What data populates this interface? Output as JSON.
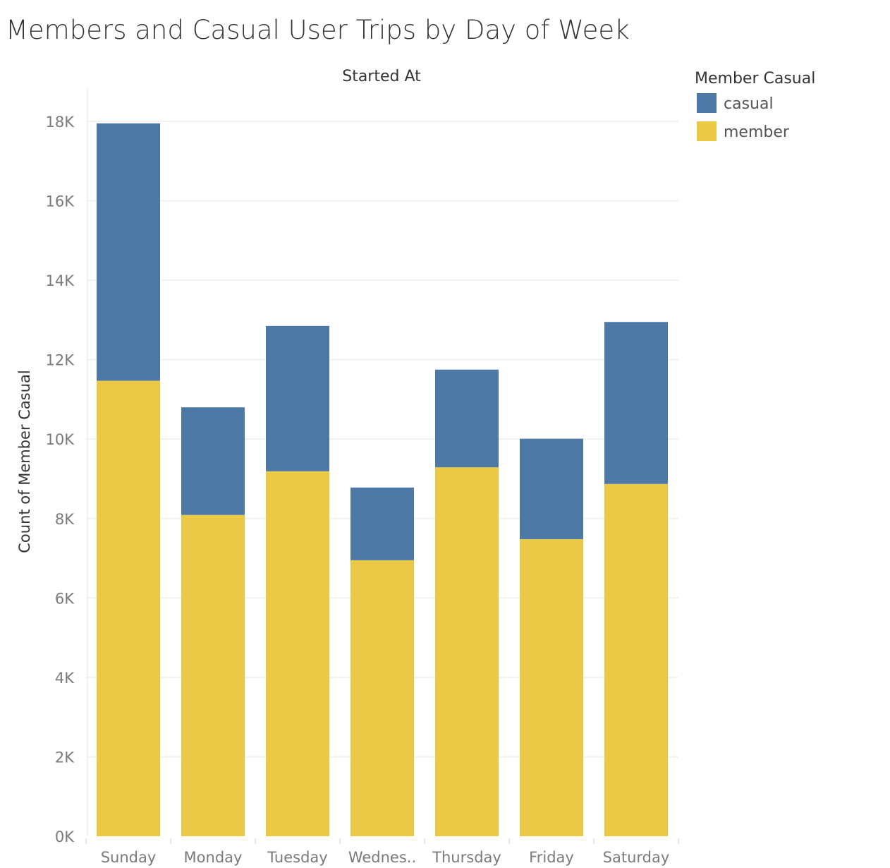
{
  "chart_data": {
    "type": "bar",
    "stacked": true,
    "title": "Members and Casual User Trips by Day of Week",
    "header": "Started At",
    "ylabel": "Count of Member Casual",
    "ylim": [
      0,
      18000
    ],
    "y_ticks": [
      {
        "value": 0,
        "label": "0K"
      },
      {
        "value": 2000,
        "label": "2K"
      },
      {
        "value": 4000,
        "label": "4K"
      },
      {
        "value": 6000,
        "label": "6K"
      },
      {
        "value": 8000,
        "label": "8K"
      },
      {
        "value": 10000,
        "label": "10K"
      },
      {
        "value": 12000,
        "label": "12K"
      },
      {
        "value": 14000,
        "label": "14K"
      },
      {
        "value": 16000,
        "label": "16K"
      },
      {
        "value": 18000,
        "label": "18K"
      }
    ],
    "grid": true,
    "categories": [
      "Sunday",
      "Monday",
      "Tuesday",
      "Wednes..",
      "Thursday",
      "Friday",
      "Saturday"
    ],
    "series": [
      {
        "name": "member",
        "color": "#eac947",
        "values": [
          11470,
          8090,
          9190,
          6950,
          9290,
          7480,
          8870
        ]
      },
      {
        "name": "casual",
        "color": "#4e79a7",
        "values": [
          6480,
          2710,
          3660,
          1830,
          2460,
          2530,
          4080
        ]
      }
    ],
    "legend": {
      "title": "Member Casual",
      "position": "top-right",
      "entries": [
        {
          "label": "casual",
          "color": "#4e79a7"
        },
        {
          "label": "member",
          "color": "#eac947"
        }
      ]
    }
  }
}
